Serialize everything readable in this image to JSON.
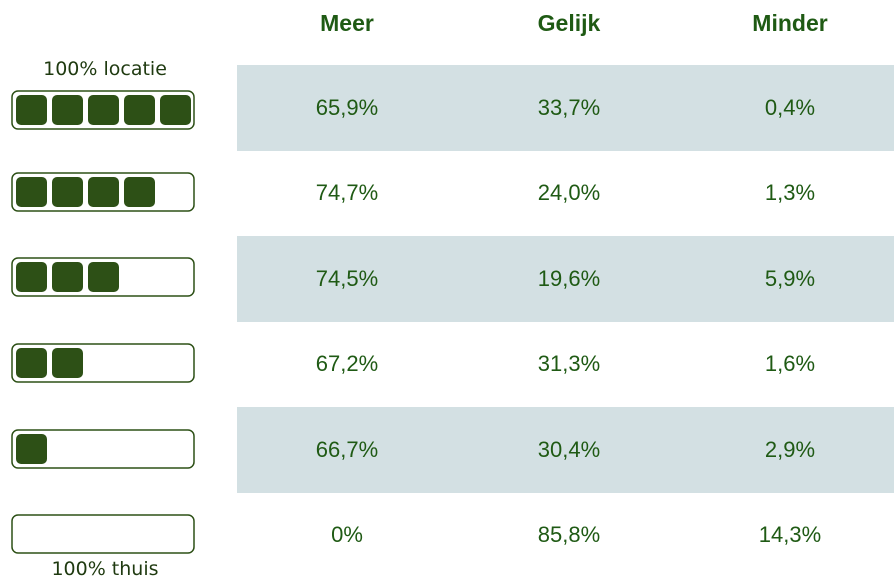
{
  "header": {
    "columns": [
      "Meer",
      "Gelijk",
      "Minder"
    ]
  },
  "scale": {
    "top_label": "100% locatie",
    "bottom_label": "100% thuis"
  },
  "table": {
    "rows": [
      [
        "65,9%",
        "33,7%",
        "0,4%"
      ],
      [
        "74,7%",
        "24,0%",
        "1,3%"
      ],
      [
        "74,5%",
        "19,6%",
        "5,9%"
      ],
      [
        "67,2%",
        "31,3%",
        "1,6%"
      ],
      [
        "66,7%",
        "30,4%",
        "2,9%"
      ],
      [
        "0%",
        "85,8%",
        "14,3%"
      ]
    ]
  }
}
